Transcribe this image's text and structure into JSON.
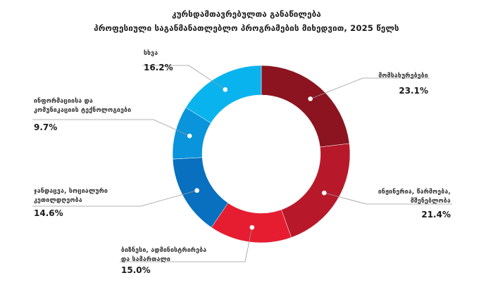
{
  "title": {
    "line1": "კურსდამთავრებულთა განაწილება",
    "line2": "პროფესიული საგანმანათლებლო პროგრამების მიხედვით, 2025 წელს"
  },
  "chart_data": {
    "type": "pie",
    "donut": true,
    "slices": [
      {
        "label_lines": [
          "მომსახურებები"
        ],
        "value_text": "23.1%",
        "value": 23.1,
        "color": "#8b1420"
      },
      {
        "label_lines": [
          "ინჟინერია, წარმოება,",
          "მშენებლობა"
        ],
        "value_text": "21.4%",
        "value": 21.4,
        "color": "#b8192a"
      },
      {
        "label_lines": [
          "ბიზნესი, ადმინისტრირება",
          "და სამართალი"
        ],
        "value_text": "15.0%",
        "value": 15.0,
        "color": "#e61d31"
      },
      {
        "label_lines": [
          "ჯანდაცვა, სოციალური",
          "კეთილდღეობა"
        ],
        "value_text": "14.6%",
        "value": 14.6,
        "color": "#0870bf"
      },
      {
        "label_lines": [
          "ინფორმაციისა და",
          "კომუნიკაციის ტექნოლოგიები"
        ],
        "value_text": "9.7%",
        "value": 9.7,
        "color": "#0994dc"
      },
      {
        "label_lines": [
          "სხვა"
        ],
        "value_text": "16.2%",
        "value": 16.2,
        "color": "#09b4ee"
      }
    ]
  }
}
